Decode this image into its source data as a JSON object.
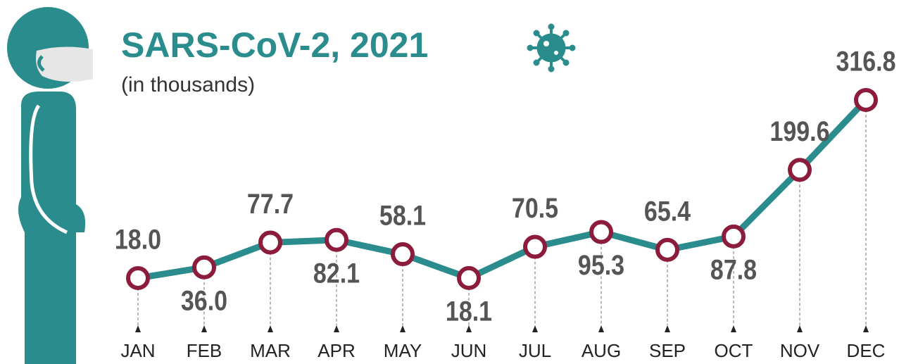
{
  "chart_data": {
    "type": "line",
    "title": "SARS-CoV-2, 2021",
    "subtitle": "(in thousands)",
    "categories": [
      "JAN",
      "FEB",
      "MAR",
      "APR",
      "MAY",
      "JUN",
      "JUL",
      "AUG",
      "SEP",
      "OCT",
      "NOV",
      "DEC"
    ],
    "values": [
      18.0,
      36.0,
      77.7,
      82.1,
      58.1,
      18.1,
      70.5,
      95.3,
      65.4,
      87.8,
      199.6,
      316.8
    ],
    "value_labels": [
      "18.0",
      "36.0",
      "77.7",
      "82.1",
      "58.1",
      "18.1",
      "70.5",
      "95.3",
      "65.4",
      "87.8",
      "199.6",
      "316.8"
    ],
    "color": "#2a8c8c",
    "marker_color": "#8c1c3c"
  }
}
